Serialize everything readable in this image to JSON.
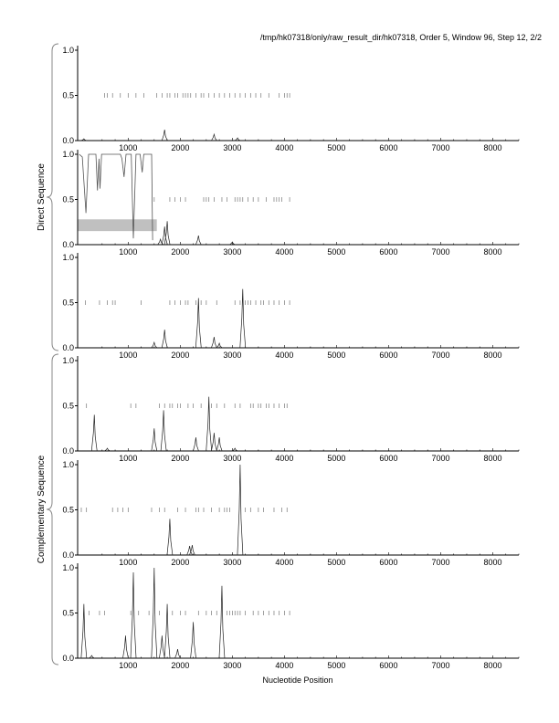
{
  "chart_data": {
    "type": "line",
    "title": "/tmp/hk07318/only/raw_result_dir/hk07318, Order 5, Window 96, Step 12, 2/2",
    "xlabel": "Nucleotide Position",
    "group_labels": [
      "Direct Sequence",
      "Complementary Sequence"
    ],
    "xlim": [
      30,
      8500
    ],
    "ylim": [
      0,
      1
    ],
    "x_ticks": [
      1000,
      2000,
      3000,
      4000,
      5000,
      6000,
      7000,
      8000
    ],
    "y_ticks": [
      "0.0",
      "0.5",
      "1.0"
    ],
    "panels": [
      {
        "group": "Direct Sequence",
        "peaks": [
          [
            150,
            0.02
          ],
          [
            1700,
            0.12
          ],
          [
            2650,
            0.07
          ],
          [
            3100,
            0.03
          ]
        ],
        "orf_marks": [
          550,
          600,
          700,
          850,
          1000,
          1150,
          1300,
          1550,
          1650,
          1750,
          1800,
          1900,
          1950,
          2050,
          2100,
          2150,
          2200,
          2300,
          2400,
          2450,
          2550,
          2650,
          2750,
          2850,
          2950,
          3050,
          3150,
          3250,
          3350,
          3450,
          3550,
          3700,
          3900,
          4000,
          4050,
          4100
        ]
      },
      {
        "group": "Direct Sequence",
        "coding_region": {
          "from": 30,
          "to": 1550,
          "low": 0.15,
          "high": 0.28
        },
        "coding_curve": [
          [
            60,
            1
          ],
          [
            120,
            0.97
          ],
          [
            190,
            0.35
          ],
          [
            240,
            1
          ],
          [
            380,
            1
          ],
          [
            410,
            0.6
          ],
          [
            440,
            0.95
          ],
          [
            460,
            0.62
          ],
          [
            490,
            1
          ],
          [
            850,
            1
          ],
          [
            880,
            0.95
          ],
          [
            920,
            0.75
          ],
          [
            960,
            1
          ],
          [
            1060,
            1
          ],
          [
            1100,
            0.07
          ],
          [
            1150,
            1
          ],
          [
            1230,
            1
          ],
          [
            1270,
            0.8
          ],
          [
            1300,
            1
          ],
          [
            1450,
            1
          ],
          [
            1470,
            0.05
          ]
        ],
        "peaks": [
          [
            1620,
            0.06
          ],
          [
            1700,
            0.2
          ],
          [
            1750,
            0.26
          ],
          [
            2350,
            0.1
          ],
          [
            3000,
            0.03
          ]
        ],
        "orf_marks": [
          1500,
          1800,
          1900,
          2000,
          2100,
          2450,
          2500,
          2550,
          2650,
          2800,
          2900,
          3050,
          3100,
          3150,
          3200,
          3300,
          3400,
          3500,
          3650,
          3800,
          3850,
          3900,
          3950,
          4100
        ]
      },
      {
        "group": "Direct Sequence",
        "peaks": [
          [
            1500,
            0.06
          ],
          [
            1700,
            0.2
          ],
          [
            2350,
            0.55
          ],
          [
            2650,
            0.12
          ],
          [
            2750,
            0.05
          ],
          [
            3200,
            0.65
          ]
        ],
        "orf_marks": [
          180,
          450,
          600,
          700,
          750,
          1250,
          1800,
          1900,
          2000,
          2100,
          2150,
          2300,
          2400,
          2500,
          2700,
          3050,
          3150,
          3250,
          3300,
          3350,
          3450,
          3550,
          3600,
          3700,
          3800,
          3900,
          4000,
          4100
        ]
      },
      {
        "group": "Complementary Sequence",
        "peaks": [
          [
            350,
            0.4
          ],
          [
            600,
            0.03
          ],
          [
            1500,
            0.25
          ],
          [
            1680,
            0.45
          ],
          [
            2300,
            0.15
          ],
          [
            2550,
            0.6
          ],
          [
            2650,
            0.2
          ],
          [
            2750,
            0.15
          ],
          [
            3050,
            0.03
          ]
        ],
        "orf_marks": [
          200,
          1050,
          1150,
          1600,
          1700,
          1800,
          1850,
          1950,
          2000,
          2150,
          2250,
          2400,
          2600,
          2700,
          2850,
          3050,
          3150,
          3350,
          3400,
          3500,
          3550,
          3650,
          3700,
          3800,
          3900,
          4000,
          4050
        ]
      },
      {
        "group": "Complementary Sequence",
        "peaks": [
          [
            1800,
            0.4
          ],
          [
            2180,
            0.1
          ],
          [
            2230,
            0.11
          ],
          [
            3150,
            1.0
          ]
        ],
        "orf_marks": [
          100,
          200,
          700,
          800,
          900,
          1000,
          1450,
          1600,
          1700,
          1950,
          2100,
          2300,
          2350,
          2450,
          2600,
          2750,
          2850,
          2900,
          2950,
          3250,
          3350,
          3500,
          3600,
          3800,
          3950,
          4050
        ]
      },
      {
        "group": "Complementary Sequence",
        "peaks": [
          [
            150,
            0.6
          ],
          [
            300,
            0.03
          ],
          [
            950,
            0.25
          ],
          [
            1100,
            0.95
          ],
          [
            1500,
            1.0
          ],
          [
            1650,
            0.25
          ],
          [
            1750,
            0.6
          ],
          [
            1950,
            0.1
          ],
          [
            2250,
            0.4
          ],
          [
            2800,
            0.8
          ]
        ],
        "orf_marks": [
          250,
          450,
          550,
          1050,
          1200,
          1400,
          1600,
          1850,
          2000,
          2100,
          2350,
          2500,
          2600,
          2700,
          2900,
          2950,
          3000,
          3050,
          3100,
          3150,
          3250,
          3400,
          3500,
          3600,
          3700,
          3800,
          3900,
          4000,
          4100
        ]
      }
    ]
  }
}
